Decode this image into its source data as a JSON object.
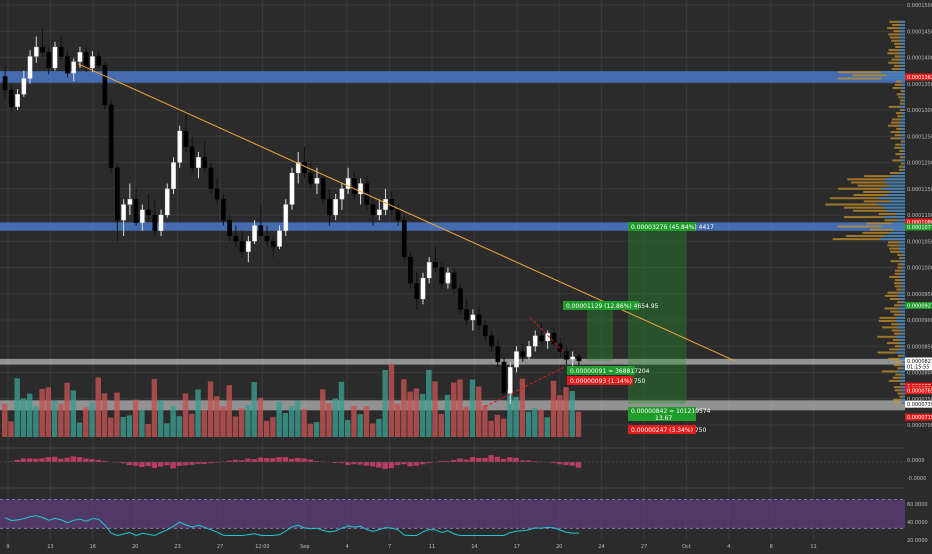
{
  "colors": {
    "background": "#2b2b2b",
    "grid": "#3a3a3a",
    "candle_up": "#ffffff",
    "candle_down": "#000000",
    "zone": "#4a78c8",
    "grey_zone": "#bfbfbf",
    "trendline": "#f0a63a",
    "green": "#1f9c2b",
    "red": "#e11b1b",
    "vol_up": "#3b9c8f",
    "vol_down": "#c25353",
    "macd": "#d23f6a",
    "rsi_line": "#21c7d8",
    "rsi_band": "#5e3f7c"
  },
  "price_axis": {
    "ticks": [
      "0.00015000",
      "0.00014500",
      "0.00014000",
      "0.00013500",
      "0.00013000",
      "0.00012500",
      "0.00012000",
      "0.00011500",
      "0.00011000",
      "0.00010500",
      "0.00010000",
      "0.00009500",
      "0.00009000",
      "0.00008500",
      "0.00008000",
      "0.00007500",
      "0.00007000"
    ],
    "markers": [
      {
        "text": "0.00013629",
        "value": 0.00013629,
        "color": "#e11b1b"
      },
      {
        "text": "0.00010867",
        "value": 0.00010867,
        "color": "#e11b1b"
      },
      {
        "text": "0.00010771",
        "value": 0.00010771,
        "color": "#1f9c2b"
      },
      {
        "text": "0.00009277",
        "value": 9.277e-05,
        "color": "#1f9c2b"
      },
      {
        "text": "0.00008219",
        "value": 8.219e-05,
        "color": "#ffffff"
      },
      {
        "text": "01:15:55",
        "value": 8.11e-05,
        "color": "#ffffff"
      },
      {
        "text": "0.00007741",
        "value": 7.741e-05,
        "color": "#e11b1b"
      },
      {
        "text": "0.00007698",
        "value": 7.698e-05,
        "color": "#e11b1b"
      },
      {
        "text": "0.00007653",
        "value": 7.653e-05,
        "color": "#e11b1b"
      },
      {
        "text": "0.00007397",
        "value": 7.397e-05,
        "color": "#ffffff"
      },
      {
        "text": "0.00007150",
        "value": 7.15e-05,
        "color": "#e11b1b"
      }
    ]
  },
  "macd_axis": {
    "ticks": [
      "0.0000",
      "-0.0000"
    ]
  },
  "rsi_axis": {
    "ticks": [
      "60.0000",
      "40.0000",
      "20.0000"
    ]
  },
  "time_axis": {
    "ticks": [
      "9",
      "13",
      "16",
      "20",
      "23",
      "27",
      "12:00",
      "Sep",
      "4",
      "7",
      "11",
      "14",
      "17",
      "20",
      "24",
      "27",
      "Oct",
      "4",
      "8",
      "11"
    ]
  },
  "labels": {
    "target_1": "0.00003276 (45.84%) 4417",
    "target_2": "0.00001129 (12.86%) 4654.95",
    "entry_1": "0.00000091 ≈ 368817204",
    "stop_1": "0.00000093 (1.14%) 750",
    "entry_2": "0.00000842 ≈ 101219574",
    "entry_2_sub": "13.67",
    "stop_2": "0.00000247 (3.34%) 750"
  },
  "chart_data": {
    "type": "candlestick",
    "ylim": [
      7e-05,
      0.00015
    ],
    "grid": true,
    "candles_ohlc": [
      [
        0.0001364,
        0.0001386,
        0.0001322,
        0.0001338
      ],
      [
        0.0001338,
        0.000135,
        0.0001297,
        0.0001306
      ],
      [
        0.0001306,
        0.000134,
        0.00013,
        0.000133
      ],
      [
        0.000133,
        0.0001375,
        0.0001325,
        0.000136
      ],
      [
        0.000136,
        0.0001414,
        0.000135,
        0.0001402
      ],
      [
        0.0001402,
        0.000144,
        0.000139,
        0.000142
      ],
      [
        0.000142,
        0.0001455,
        0.00014,
        0.000141
      ],
      [
        0.000141,
        0.000142,
        0.0001368,
        0.000138
      ],
      [
        0.000138,
        0.000143,
        0.0001375,
        0.000142
      ],
      [
        0.000142,
        0.0001442,
        0.0001395,
        0.0001402
      ],
      [
        0.0001402,
        0.0001412,
        0.0001362,
        0.000137
      ],
      [
        0.000137,
        0.0001398,
        0.0001355,
        0.0001392
      ],
      [
        0.0001392,
        0.000142,
        0.000138,
        0.000141
      ],
      [
        0.000141,
        0.0001418,
        0.0001372,
        0.000138
      ],
      [
        0.000138,
        0.0001412,
        0.0001372,
        0.0001402
      ],
      [
        0.0001402,
        0.0001412,
        0.000138,
        0.0001385
      ],
      [
        0.0001385,
        0.000139,
        0.00013,
        0.000131
      ],
      [
        0.000131,
        0.000132,
        0.000118,
        0.000119
      ],
      [
        0.000119,
        0.00012,
        0.000105,
        0.000109
      ],
      [
        0.000109,
        0.000113,
        0.000106,
        0.000112
      ],
      [
        0.000112,
        0.000116,
        0.00011,
        0.000113
      ],
      [
        0.000113,
        0.000115,
        0.000108,
        0.0001085
      ],
      [
        0.0001085,
        0.000112,
        0.000107,
        0.000111
      ],
      [
        0.000111,
        0.000114,
        0.000109,
        0.00011
      ],
      [
        0.00011,
        0.000113,
        0.000106,
        0.000107
      ],
      [
        0.000107,
        0.000111,
        0.000106,
        0.00011
      ],
      [
        0.00011,
        0.000116,
        0.0001095,
        0.000115
      ],
      [
        0.000115,
        0.000121,
        0.000114,
        0.00012
      ],
      [
        0.00012,
        0.000127,
        0.000119,
        0.000126
      ],
      [
        0.000126,
        0.0001295,
        0.000122,
        0.000123
      ],
      [
        0.000123,
        0.000125,
        0.000118,
        0.000119
      ],
      [
        0.000119,
        0.000122,
        0.000117,
        0.000121
      ],
      [
        0.000121,
        0.000124,
        0.000118,
        0.000119
      ],
      [
        0.000119,
        0.00012,
        0.000114,
        0.000115
      ],
      [
        0.000115,
        0.000117,
        0.000112,
        0.000113
      ],
      [
        0.000113,
        0.000114,
        0.000108,
        0.000109
      ],
      [
        0.000109,
        0.00011,
        0.000105,
        0.000106
      ],
      [
        0.000106,
        0.000108,
        0.000104,
        0.000105
      ],
      [
        0.000105,
        0.000107,
        0.000102,
        0.000103
      ],
      [
        0.000103,
        0.000106,
        0.000101,
        0.000105
      ],
      [
        0.000105,
        0.000109,
        0.0001045,
        0.000108
      ],
      [
        0.000108,
        0.000112,
        0.000107,
        0.000106
      ],
      [
        0.000106,
        0.000108,
        0.000104,
        0.000105
      ],
      [
        0.000105,
        0.000106,
        0.000102,
        0.000104
      ],
      [
        0.000104,
        0.000108,
        0.0001035,
        0.000107
      ],
      [
        0.000107,
        0.000113,
        0.000106,
        0.000112
      ],
      [
        0.000112,
        0.000119,
        0.000111,
        0.000118
      ],
      [
        0.000118,
        0.000122,
        0.000116,
        0.00012
      ],
      [
        0.00012,
        0.000123,
        0.000117,
        0.000118
      ],
      [
        0.000118,
        0.00012,
        0.000115,
        0.000116
      ],
      [
        0.000116,
        0.000119,
        0.000114,
        0.000117
      ],
      [
        0.000117,
        0.000118,
        0.000112,
        0.000113
      ],
      [
        0.000113,
        0.000115,
        0.000108,
        0.00011
      ],
      [
        0.00011,
        0.000114,
        0.000109,
        0.000113
      ],
      [
        0.000113,
        0.000116,
        0.000111,
        0.000115
      ],
      [
        0.000115,
        0.000119,
        0.000114,
        0.000117
      ],
      [
        0.000117,
        0.000118,
        0.000113,
        0.000114
      ],
      [
        0.000114,
        0.000117,
        0.000112,
        0.000116
      ],
      [
        0.000116,
        0.0001175,
        0.000111,
        0.000112
      ],
      [
        0.000112,
        0.000114,
        0.000108,
        0.00011
      ],
      [
        0.00011,
        0.000113,
        0.000109,
        0.000111
      ],
      [
        0.000111,
        0.000115,
        0.00011,
        0.000113
      ],
      [
        0.000113,
        0.0001145,
        0.00011,
        0.000111
      ],
      [
        0.000111,
        0.000112,
        0.000108,
        0.000109
      ],
      [
        0.000109,
        0.00011,
        0.000101,
        0.000102
      ],
      [
        0.000102,
        0.000103,
        9.6e-05,
        9.7e-05
      ],
      [
        9.7e-05,
        9.9e-05,
        9.2e-05,
        9.4e-05
      ],
      [
        9.4e-05,
        9.9e-05,
        9.3e-05,
        9.8e-05
      ],
      [
        9.8e-05,
        0.000102,
        9.7e-05,
        0.000101
      ],
      [
        0.000101,
        0.000104,
        9.9e-05,
        0.0001
      ],
      [
        0.0001,
        0.000101,
        9.6e-05,
        9.7e-05
      ],
      [
        9.7e-05,
        0.0001,
        9.6e-05,
        9.9e-05
      ],
      [
        9.9e-05,
        0.0001,
        9.5e-05,
        9.6e-05
      ],
      [
        9.6e-05,
        9.7e-05,
        9.1e-05,
        9.2e-05
      ],
      [
        9.2e-05,
        9.4e-05,
        8.9e-05,
        9e-05
      ],
      [
        9e-05,
        9.2e-05,
        8.8e-05,
        9.1e-05
      ],
      [
        9.1e-05,
        9.25e-05,
        8.8e-05,
        8.9e-05
      ],
      [
        8.9e-05,
        9e-05,
        8.6e-05,
        8.7e-05
      ],
      [
        8.7e-05,
        8.8e-05,
        8.4e-05,
        8.5e-05
      ],
      [
        8.5e-05,
        8.6e-05,
        8.1e-05,
        8.2e-05
      ],
      [
        8.2e-05,
        8.3e-05,
        7.5e-05,
        7.6e-05
      ],
      [
        7.6e-05,
        8.2e-05,
        7.4e-05,
        8.1e-05
      ],
      [
        8.1e-05,
        8.5e-05,
        8e-05,
        8.4e-05
      ],
      [
        8.4e-05,
        8.55e-05,
        8.2e-05,
        8.3e-05
      ],
      [
        8.3e-05,
        8.6e-05,
        8.25e-05,
        8.5e-05
      ],
      [
        8.5e-05,
        8.8e-05,
        8.4e-05,
        8.7e-05
      ],
      [
        8.7e-05,
        8.95e-05,
        8.55e-05,
        8.6e-05
      ],
      [
        8.6e-05,
        8.8e-05,
        8.45e-05,
        8.75e-05
      ],
      [
        8.75e-05,
        8.85e-05,
        8.5e-05,
        8.55e-05
      ],
      [
        8.55e-05,
        8.65e-05,
        8.3e-05,
        8.4e-05
      ],
      [
        8.4e-05,
        8.5e-05,
        8.15e-05,
        8.25e-05
      ],
      [
        8.25e-05,
        8.4e-05,
        8.1e-05,
        8.3e-05
      ],
      [
        8.3e-05,
        8.35e-05,
        8.12e-05,
        8.22e-05
      ]
    ],
    "horizontal_zones": [
      {
        "from": 0.0001352,
        "to": 0.0001374
      },
      {
        "from": 0.000107,
        "to": 0.0001086
      }
    ],
    "grey_zones": [
      {
        "from": 8.15e-05,
        "to": 8.26e-05
      },
      {
        "from": 7.28e-05,
        "to": 7.47e-05
      }
    ],
    "trendline": [
      [
        0.000139,
        "start"
      ],
      [
        8.2e-05,
        "end"
      ]
    ]
  }
}
